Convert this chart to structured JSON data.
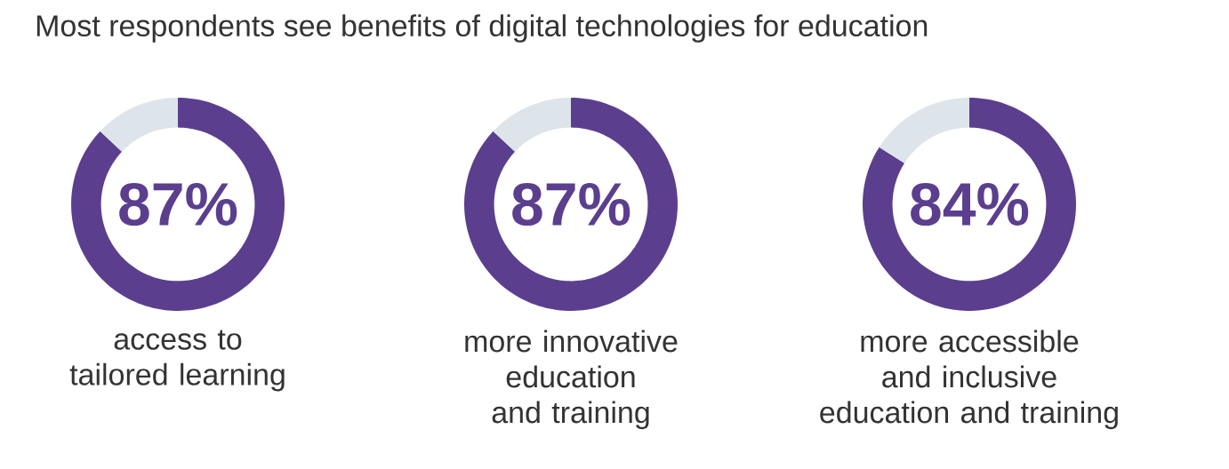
{
  "chart_data": [
    {
      "type": "donut",
      "title": "Most respondents see benefits of digital technologies for education",
      "categories": [
        "access to tailored learning",
        null
      ],
      "values": [
        87,
        13
      ],
      "colors": [
        "#5b3f8e",
        "#dde5ea"
      ],
      "value_labels": [
        "87%",
        null
      ]
    },
    {
      "type": "donut",
      "categories": [
        "more innovative education and training",
        null
      ],
      "values": [
        87,
        13
      ],
      "colors": [
        "#5b3f8e",
        "#dde5ea"
      ],
      "value_labels": [
        "87%",
        null
      ]
    },
    {
      "type": "donut",
      "categories": [
        "more accessible and inclusive education and training",
        null
      ],
      "values": [
        84,
        16
      ],
      "colors": [
        "#5b3f8e",
        "#dde5ea"
      ],
      "value_labels": [
        "84%",
        null
      ]
    }
  ]
}
